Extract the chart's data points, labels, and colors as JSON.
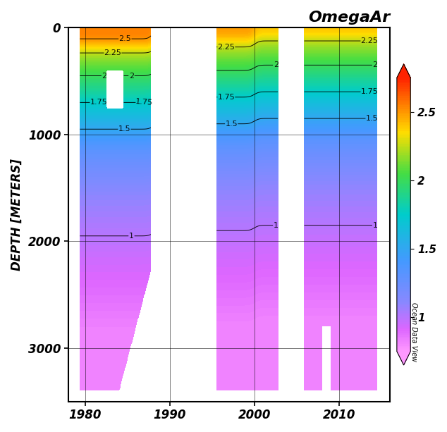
{
  "title": "OmegaAr",
  "ylabel": "DEPTH [METERS]",
  "xlim": [
    1978,
    2016
  ],
  "ylim": [
    3500,
    0
  ],
  "xticks": [
    1980,
    1990,
    2000,
    2010
  ],
  "yticks": [
    0,
    1000,
    2000,
    3000
  ],
  "cbar_ticks": [
    1.0,
    1.5,
    2.0,
    2.5
  ],
  "cbar_label": "Ocean Data View",
  "vmin": 0.75,
  "vmax": 2.75,
  "contour_levels": [
    1.0,
    1.5,
    1.75,
    2.0,
    2.25,
    2.5
  ],
  "background_color": "#ffffff",
  "colormap_nodes": [
    0.0,
    0.08,
    0.18,
    0.33,
    0.5,
    0.65,
    0.8,
    1.0
  ],
  "colormap_colors": [
    "#ff99ff",
    "#dd66ff",
    "#8888ff",
    "#4499ff",
    "#00cccc",
    "#44dd44",
    "#ffdd00",
    "#ff2200"
  ]
}
